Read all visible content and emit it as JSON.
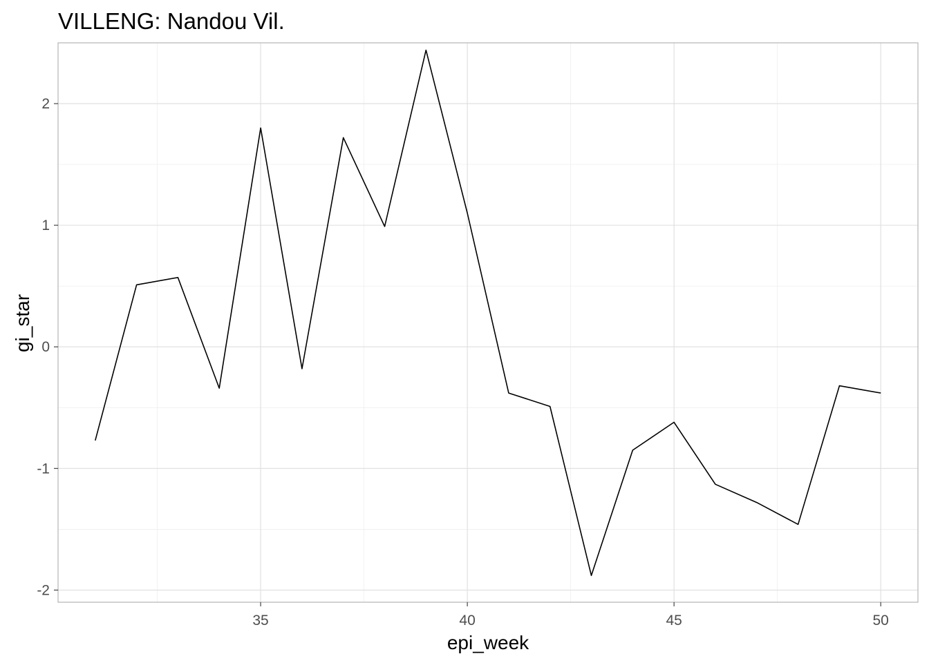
{
  "chart_data": {
    "type": "line",
    "title": "VILLENG: Nandou Vil.",
    "xlabel": "epi_week",
    "ylabel": "gi_star",
    "xlim": [
      30.1,
      50.9
    ],
    "ylim": [
      -2.1,
      2.5
    ],
    "xticks": [
      35,
      40,
      45,
      50
    ],
    "xtick_labels": [
      "35",
      "40",
      "45",
      "50"
    ],
    "yticks": [
      -2,
      -1,
      0,
      1,
      2
    ],
    "ytick_labels": [
      "-2",
      "-1",
      "0",
      "1",
      "2"
    ],
    "grid": true,
    "legend": "none",
    "line_color": "#000000",
    "x": [
      31,
      32,
      33,
      34,
      35,
      36,
      37,
      38,
      39,
      40,
      41,
      42,
      43,
      44,
      45,
      46,
      47,
      48,
      49,
      50
    ],
    "y": [
      -0.77,
      0.51,
      0.57,
      -0.34,
      1.8,
      -0.18,
      1.72,
      0.99,
      2.44,
      1.1,
      -0.38,
      -0.49,
      -1.88,
      -0.85,
      -0.62,
      -1.13,
      -1.28,
      -1.46,
      -0.32,
      -0.38
    ]
  }
}
